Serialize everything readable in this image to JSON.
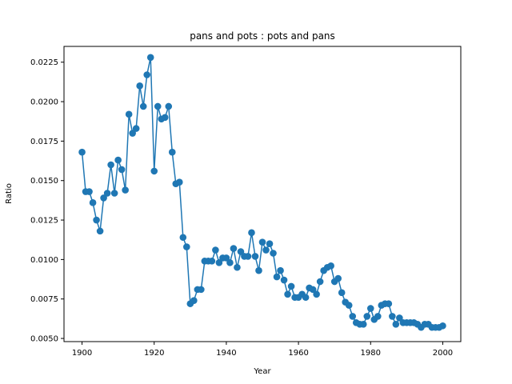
{
  "chart_data": {
    "type": "line",
    "title": "pans and pots : pots and pans",
    "xlabel": "Year",
    "ylabel": "Ratio",
    "xlim": [
      1895,
      2005
    ],
    "ylim": [
      0.0048,
      0.0235
    ],
    "x_ticks": [
      1900,
      1920,
      1940,
      1960,
      1980,
      2000
    ],
    "y_ticks": [
      "0.0050",
      "0.0075",
      "0.0100",
      "0.0125",
      "0.0150",
      "0.0175",
      "0.0200",
      "0.0225"
    ],
    "grid": false,
    "marker": "circle",
    "color": "#1f77b4",
    "series": [
      {
        "x": [
          1900,
          1901,
          1902,
          1903,
          1904,
          1905,
          1906,
          1907,
          1908,
          1909,
          1910,
          1911,
          1912,
          1913,
          1914,
          1915,
          1916,
          1917,
          1918,
          1919,
          1920,
          1921,
          1922,
          1923,
          1924,
          1925,
          1926,
          1927,
          1928,
          1929,
          1930,
          1931,
          1932,
          1933,
          1934,
          1935,
          1936,
          1937,
          1938,
          1939,
          1940,
          1941,
          1942,
          1943,
          1944,
          1945,
          1946,
          1947,
          1948,
          1949,
          1950,
          1951,
          1952,
          1953,
          1954,
          1955,
          1956,
          1957,
          1958,
          1959,
          1960,
          1961,
          1962,
          1963,
          1964,
          1965,
          1966,
          1967,
          1968,
          1969,
          1970,
          1971,
          1972,
          1973,
          1974,
          1975,
          1976,
          1977,
          1978,
          1979,
          1980,
          1981,
          1982,
          1983,
          1984,
          1985,
          1986,
          1987,
          1988,
          1989,
          1990,
          1991,
          1992,
          1993,
          1994,
          1995,
          1996,
          1997,
          1998,
          1999,
          2000
        ],
        "y": [
          0.0168,
          0.0143,
          0.0143,
          0.0136,
          0.0125,
          0.0118,
          0.0139,
          0.0142,
          0.016,
          0.0142,
          0.0163,
          0.0157,
          0.0144,
          0.0192,
          0.018,
          0.0183,
          0.021,
          0.0197,
          0.0217,
          0.0228,
          0.0156,
          0.0197,
          0.0189,
          0.019,
          0.0197,
          0.0168,
          0.0148,
          0.0149,
          0.0114,
          0.0108,
          0.0072,
          0.0074,
          0.0081,
          0.0081,
          0.0099,
          0.0099,
          0.0099,
          0.0106,
          0.0098,
          0.0101,
          0.0101,
          0.0098,
          0.0107,
          0.0095,
          0.0105,
          0.0102,
          0.0102,
          0.0117,
          0.0102,
          0.0093,
          0.0111,
          0.0106,
          0.011,
          0.0104,
          0.0089,
          0.0093,
          0.0087,
          0.0078,
          0.0083,
          0.0076,
          0.0076,
          0.0078,
          0.0076,
          0.0082,
          0.0081,
          0.0078,
          0.0086,
          0.0093,
          0.0095,
          0.0096,
          0.0086,
          0.0088,
          0.0079,
          0.0073,
          0.0071,
          0.0064,
          0.006,
          0.0059,
          0.0059,
          0.0064,
          0.0069,
          0.0062,
          0.0064,
          0.0071,
          0.0072,
          0.0072,
          0.0064,
          0.0059,
          0.0063,
          0.006,
          0.006,
          0.006,
          0.006,
          0.0059,
          0.0057,
          0.0059,
          0.0059,
          0.0057,
          0.0057,
          0.0057,
          0.0058
        ]
      }
    ]
  }
}
